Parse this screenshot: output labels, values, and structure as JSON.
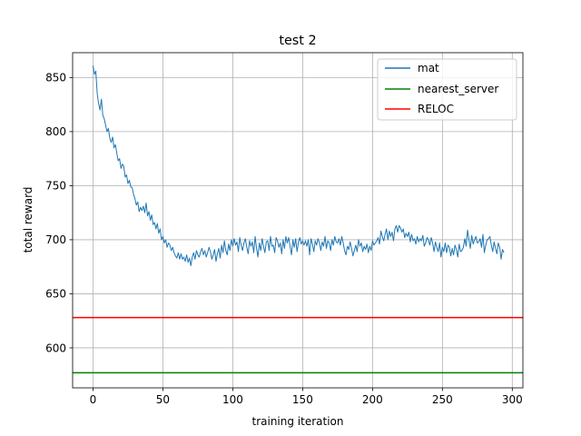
{
  "chart_data": {
    "type": "line",
    "title": "test 2",
    "xlabel": "training iteration",
    "ylabel": "total reward",
    "xlim": [
      -14.6,
      307.6
    ],
    "ylim": [
      563,
      873
    ],
    "xticks": [
      0,
      50,
      100,
      150,
      200,
      250,
      300
    ],
    "yticks": [
      600,
      650,
      700,
      750,
      800,
      850
    ],
    "grid": true,
    "legend_position": "top-right",
    "colors": {
      "mat": "#1f77b4",
      "nearest_server": "#008000",
      "RELOC": "#ff0000",
      "grid": "#b0b0b0"
    },
    "series": [
      {
        "name": "mat",
        "kind": "line",
        "x_start": 0,
        "x_step": 1,
        "values": [
          861,
          853,
          856,
          835,
          826,
          820,
          830,
          815,
          812,
          806,
          800,
          803,
          794,
          790,
          795,
          785,
          788,
          780,
          773,
          775,
          766,
          770,
          768,
          758,
          760,
          752,
          755,
          749,
          748,
          742,
          738,
          732,
          735,
          726,
          730,
          727,
          731,
          725,
          734,
          722,
          726,
          718,
          723,
          714,
          716,
          710,
          715,
          706,
          710,
          700,
          703,
          697,
          700,
          693,
          697,
          695,
          690,
          693,
          688,
          685,
          683,
          688,
          682,
          687,
          682,
          684,
          680,
          686,
          679,
          683,
          676,
          684,
          688,
          682,
          690,
          686,
          684,
          689,
          692,
          686,
          690,
          684,
          688,
          693,
          689,
          682,
          686,
          691,
          680,
          687,
          692,
          683,
          695,
          688,
          699,
          690,
          686,
          696,
          690,
          700,
          694,
          701,
          695,
          698,
          689,
          702,
          695,
          690,
          697,
          701,
          693,
          687,
          699,
          694,
          698,
          688,
          703,
          692,
          684,
          697,
          690,
          701,
          694,
          688,
          698,
          699,
          690,
          703,
          694,
          695,
          688,
          702,
          699,
          693,
          697,
          687,
          700,
          692,
          703,
          697,
          702,
          694,
          686,
          700,
          693,
          701,
          689,
          698,
          702,
          696,
          699,
          695,
          699,
          694,
          700,
          686,
          701,
          696,
          689,
          699,
          695,
          701,
          697,
          690,
          698,
          694,
          703,
          692,
          699,
          697,
          690,
          700,
          695,
          703,
          698,
          697,
          701,
          695,
          703,
          697,
          690,
          686,
          694,
          691,
          698,
          692,
          685,
          690,
          695,
          689,
          700,
          694,
          697,
          689,
          694,
          691,
          696,
          688,
          694,
          690,
          699,
          695,
          697,
          699,
          702,
          696,
          708,
          703,
          699,
          705,
          710,
          700,
          708,
          703,
          707,
          699,
          710,
          713,
          707,
          713,
          711,
          707,
          710,
          702,
          706,
          703,
          707,
          698,
          705,
          699,
          701,
          696,
          703,
          698,
          701,
          699,
          704,
          694,
          697,
          702,
          700,
          695,
          702,
          697,
          689,
          698,
          693,
          689,
          697,
          684,
          693,
          689,
          697,
          688,
          695,
          693,
          685,
          692,
          686,
          695,
          691,
          684,
          696,
          689,
          690,
          693,
          701,
          694,
          709,
          700,
          692,
          704,
          696,
          700,
          703,
          697,
          698,
          701,
          693,
          705,
          688,
          695,
          700,
          701,
          703,
          695,
          689,
          698,
          692,
          687,
          697,
          693,
          682,
          691,
          688
        ]
      },
      {
        "name": "nearest_server",
        "kind": "hline",
        "value": 577
      },
      {
        "name": "RELOC",
        "kind": "hline",
        "value": 628
      }
    ]
  }
}
